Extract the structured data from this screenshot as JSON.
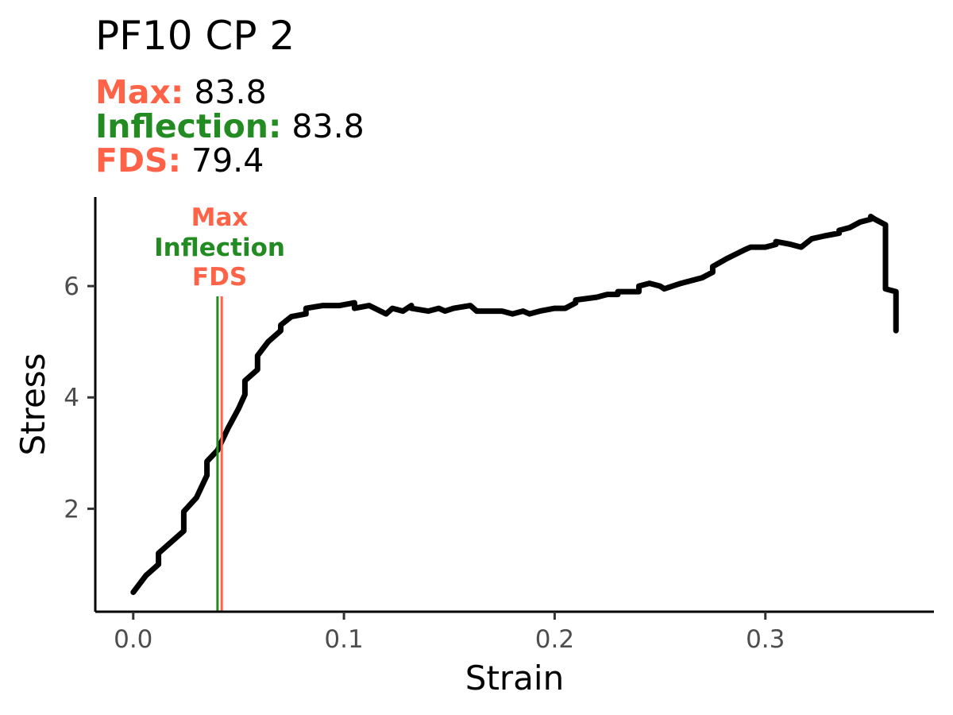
{
  "header": {
    "title": "PF10 CP 2",
    "lines": [
      {
        "key": "Max:",
        "value": "83.8",
        "color": "#ff6347"
      },
      {
        "key": "Inflection:",
        "value": "83.8",
        "color": "#228b22"
      },
      {
        "key": "FDS:",
        "value": "79.4",
        "color": "#ff6347"
      }
    ]
  },
  "chart_data": {
    "type": "line",
    "xlabel": "Strain",
    "ylabel": "Stress",
    "xlim": [
      -0.018,
      0.38
    ],
    "ylim": [
      0.15,
      7.6
    ],
    "xticks": [
      {
        "value": 0.0,
        "label": "0.0"
      },
      {
        "value": 0.1,
        "label": "0.1"
      },
      {
        "value": 0.2,
        "label": "0.2"
      },
      {
        "value": 0.3,
        "label": "0.3"
      }
    ],
    "yticks": [
      {
        "value": 2,
        "label": "2"
      },
      {
        "value": 4,
        "label": "4"
      },
      {
        "value": 6,
        "label": "6"
      }
    ],
    "grid": false,
    "series": [
      {
        "color": "#000000",
        "x": [
          0.0,
          0.006,
          0.012,
          0.012,
          0.018,
          0.024,
          0.024,
          0.03,
          0.035,
          0.035,
          0.04,
          0.045,
          0.05,
          0.053,
          0.053,
          0.059,
          0.059,
          0.064,
          0.07,
          0.07,
          0.075,
          0.082,
          0.082,
          0.09,
          0.098,
          0.105,
          0.105,
          0.112,
          0.12,
          0.123,
          0.128,
          0.132,
          0.132,
          0.14,
          0.145,
          0.148,
          0.152,
          0.16,
          0.163,
          0.17,
          0.175,
          0.18,
          0.185,
          0.188,
          0.193,
          0.2,
          0.205,
          0.21,
          0.21,
          0.22,
          0.225,
          0.23,
          0.23,
          0.24,
          0.24,
          0.245,
          0.25,
          0.252,
          0.26,
          0.27,
          0.275,
          0.275,
          0.282,
          0.29,
          0.293,
          0.3,
          0.305,
          0.305,
          0.312,
          0.317,
          0.322,
          0.328,
          0.335,
          0.335,
          0.34,
          0.345,
          0.35,
          0.35,
          0.352,
          0.357,
          0.357,
          0.362,
          0.362
        ],
        "y": [
          0.5,
          0.8,
          1.0,
          1.2,
          1.4,
          1.6,
          1.95,
          2.2,
          2.6,
          2.85,
          3.05,
          3.45,
          3.8,
          4.05,
          4.3,
          4.5,
          4.75,
          5.0,
          5.2,
          5.3,
          5.45,
          5.5,
          5.6,
          5.65,
          5.65,
          5.7,
          5.6,
          5.65,
          5.5,
          5.6,
          5.55,
          5.65,
          5.6,
          5.55,
          5.6,
          5.55,
          5.6,
          5.65,
          5.55,
          5.55,
          5.55,
          5.5,
          5.55,
          5.5,
          5.55,
          5.6,
          5.6,
          5.7,
          5.75,
          5.8,
          5.85,
          5.85,
          5.9,
          5.9,
          6.0,
          6.05,
          6.0,
          5.95,
          6.05,
          6.15,
          6.25,
          6.35,
          6.5,
          6.65,
          6.7,
          6.7,
          6.75,
          6.8,
          6.75,
          6.7,
          6.85,
          6.9,
          6.95,
          7.0,
          7.05,
          7.15,
          7.2,
          7.25,
          7.2,
          7.1,
          5.95,
          5.9,
          5.2
        ]
      }
    ],
    "vlines": [
      {
        "name": "Inflection",
        "x": 0.04,
        "color": "#228b22"
      },
      {
        "name": "FDS",
        "x": 0.042,
        "color": "#ff6347"
      }
    ],
    "annotations": [
      {
        "text": "Max",
        "color": "#ff6347"
      },
      {
        "text": "Inflection",
        "color": "#228b22"
      },
      {
        "text": "FDS",
        "color": "#ff6347"
      }
    ]
  }
}
